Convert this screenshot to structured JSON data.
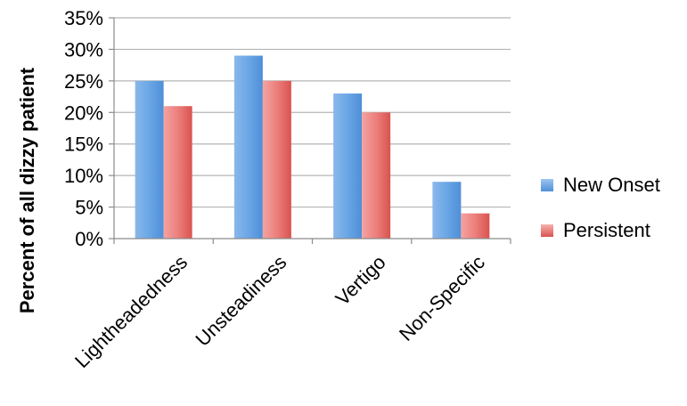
{
  "chart_data": {
    "type": "bar",
    "categories": [
      "Lightheadedness",
      "Unsteadiness",
      "Vertigo",
      "Non-Specific"
    ],
    "series": [
      {
        "name": "New Onset",
        "values": [
          25,
          29,
          23,
          9
        ],
        "color": "#5b9bd5"
      },
      {
        "name": "Persistent",
        "values": [
          21,
          25,
          20,
          4
        ],
        "color": "#e46c6a"
      }
    ],
    "ylabel": "Percent of all dizzy patient",
    "xlabel": "",
    "ylim": [
      0,
      35
    ],
    "yticks": [
      "0%",
      "5%",
      "10%",
      "15%",
      "20%",
      "25%",
      "30%",
      "35%"
    ],
    "grid": true,
    "legend": "right"
  }
}
